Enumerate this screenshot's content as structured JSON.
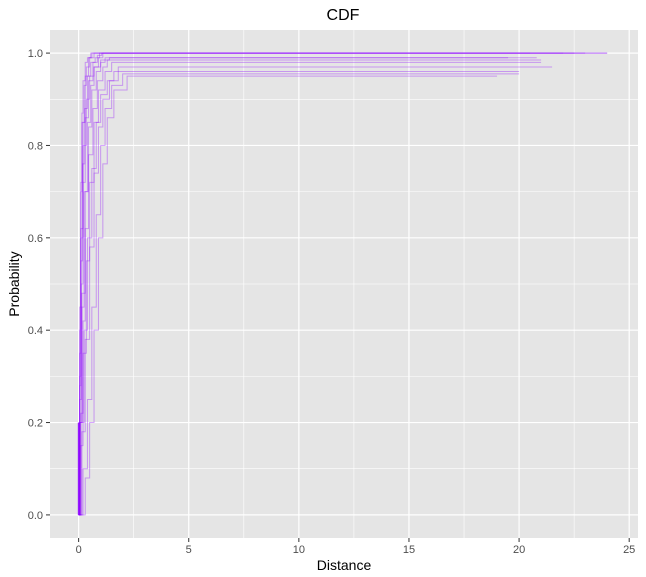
{
  "chart_data": {
    "type": "line",
    "title": "CDF",
    "xlabel": "Distance",
    "ylabel": "Probability",
    "xlim": [
      -1.3,
      25.4
    ],
    "ylim": [
      -0.05,
      1.05
    ],
    "x_ticks": [
      0,
      5,
      10,
      15,
      20,
      25
    ],
    "y_ticks": [
      0.0,
      0.2,
      0.4,
      0.6,
      0.8,
      1.0
    ],
    "x_tick_labels": [
      "0",
      "5",
      "10",
      "15",
      "20",
      "25"
    ],
    "y_tick_labels": [
      "0.0",
      "0.2",
      "0.4",
      "0.6",
      "0.8",
      "1.0"
    ],
    "grid": true,
    "legend": "none",
    "line_color": "#8b00ff",
    "panel_background": "#e5e5e5",
    "grid_color": "#ffffff",
    "series_description": "Many overlaid empirical CDF step curves; most reach ~0.95–1.0 by Distance ≈ 1–2 and stay flat to Distance ≈ 20–24.",
    "series": [
      {
        "x": [
          0,
          0.05,
          0.1,
          0.2,
          0.3,
          0.45,
          0.6,
          0.8,
          1.0,
          24.0
        ],
        "y": [
          0,
          0.3,
          0.6,
          0.85,
          0.95,
          0.99,
          1.0,
          1.0,
          1.0,
          1.0
        ]
      },
      {
        "x": [
          0,
          0.05,
          0.15,
          0.25,
          0.4,
          0.55,
          0.7,
          0.9,
          1.1,
          22.0
        ],
        "y": [
          0,
          0.2,
          0.45,
          0.7,
          0.85,
          0.93,
          0.97,
          0.99,
          1.0,
          1.0
        ]
      },
      {
        "x": [
          0,
          0.1,
          0.2,
          0.35,
          0.5,
          0.7,
          0.9,
          1.2,
          1.5,
          21.0
        ],
        "y": [
          0,
          0.15,
          0.35,
          0.55,
          0.72,
          0.85,
          0.92,
          0.96,
          0.98,
          0.98
        ]
      },
      {
        "x": [
          0,
          0.05,
          0.1,
          0.15,
          0.25,
          0.35,
          0.5,
          0.7,
          0.9,
          20.5
        ],
        "y": [
          0,
          0.4,
          0.7,
          0.85,
          0.93,
          0.97,
          0.99,
          1.0,
          1.0,
          1.0
        ]
      },
      {
        "x": [
          0,
          0.1,
          0.25,
          0.4,
          0.6,
          0.8,
          1.0,
          1.3,
          1.6,
          20.0
        ],
        "y": [
          0,
          0.2,
          0.4,
          0.6,
          0.75,
          0.85,
          0.91,
          0.94,
          0.96,
          0.96
        ]
      },
      {
        "x": [
          0,
          0.05,
          0.12,
          0.2,
          0.3,
          0.45,
          0.65,
          0.85,
          1.05,
          23.0
        ],
        "y": [
          0,
          0.25,
          0.5,
          0.72,
          0.86,
          0.94,
          0.98,
          0.995,
          1.0,
          1.0
        ]
      },
      {
        "x": [
          0,
          0.15,
          0.3,
          0.5,
          0.7,
          0.9,
          1.1,
          1.4,
          1.8,
          21.5
        ],
        "y": [
          0,
          0.18,
          0.38,
          0.58,
          0.74,
          0.84,
          0.9,
          0.94,
          0.97,
          0.97
        ]
      },
      {
        "x": [
          0,
          0.05,
          0.1,
          0.2,
          0.35,
          0.5,
          0.7,
          1.0,
          1.4,
          19.5
        ],
        "y": [
          0,
          0.35,
          0.62,
          0.8,
          0.9,
          0.95,
          0.97,
          0.985,
          0.99,
          0.99
        ]
      },
      {
        "x": [
          0,
          0.2,
          0.4,
          0.6,
          0.8,
          1.0,
          1.2,
          1.5,
          2.0,
          20.0
        ],
        "y": [
          0,
          0.1,
          0.25,
          0.45,
          0.65,
          0.8,
          0.88,
          0.93,
          0.955,
          0.955
        ]
      },
      {
        "x": [
          0,
          0.05,
          0.1,
          0.18,
          0.28,
          0.4,
          0.55,
          0.75,
          0.95,
          22.5
        ],
        "y": [
          0,
          0.28,
          0.55,
          0.76,
          0.88,
          0.95,
          0.98,
          0.99,
          1.0,
          1.0
        ]
      },
      {
        "x": [
          0,
          0.1,
          0.2,
          0.3,
          0.45,
          0.65,
          0.85,
          1.1,
          1.3,
          21.0
        ],
        "y": [
          0,
          0.22,
          0.42,
          0.62,
          0.78,
          0.88,
          0.94,
          0.97,
          0.985,
          0.985
        ]
      },
      {
        "x": [
          0,
          0.05,
          0.1,
          0.15,
          0.2,
          0.3,
          0.4,
          0.55,
          0.7,
          24.0
        ],
        "y": [
          0,
          0.45,
          0.72,
          0.87,
          0.94,
          0.98,
          0.99,
          1.0,
          1.0,
          1.0
        ]
      },
      {
        "x": [
          0,
          0.3,
          0.5,
          0.7,
          0.9,
          1.1,
          1.3,
          1.6,
          2.2,
          19.0
        ],
        "y": [
          0,
          0.08,
          0.2,
          0.4,
          0.6,
          0.76,
          0.86,
          0.92,
          0.95,
          0.95
        ]
      },
      {
        "x": [
          0,
          0.05,
          0.15,
          0.3,
          0.45,
          0.6,
          0.8,
          1.0,
          1.2,
          20.8
        ],
        "y": [
          0,
          0.2,
          0.48,
          0.7,
          0.84,
          0.92,
          0.96,
          0.98,
          0.99,
          0.99
        ]
      }
    ]
  }
}
